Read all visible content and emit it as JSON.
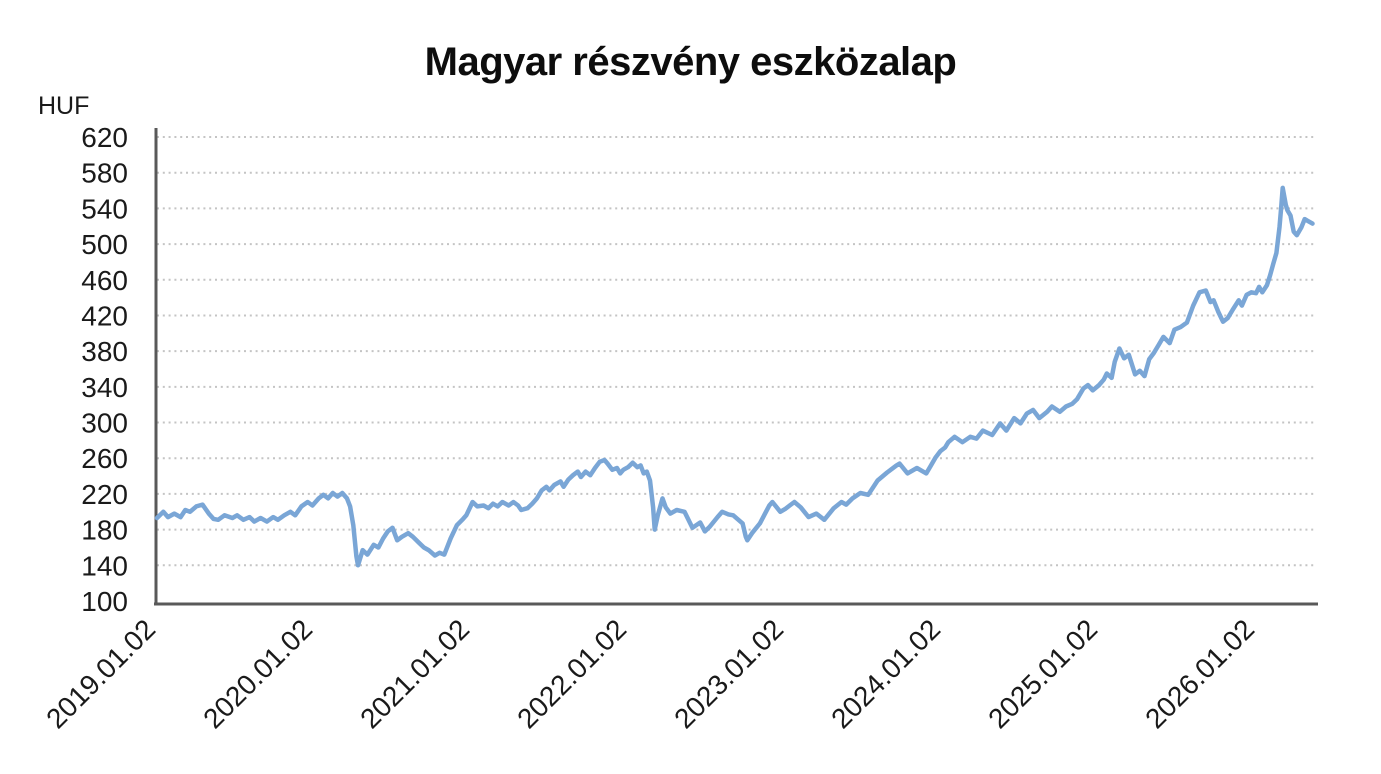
{
  "chart": {
    "title": "Magyar részvény eszközalap",
    "unit": "HUF"
  },
  "chart_data": {
    "type": "line",
    "title": "Magyar részvény eszközalap",
    "ylabel": "HUF",
    "xlabel": "",
    "ylim": [
      100,
      620
    ],
    "y_ticks": [
      620,
      580,
      540,
      500,
      460,
      420,
      380,
      340,
      300,
      260,
      220,
      180,
      140,
      100
    ],
    "x_tick_labels": [
      "2019.01.02",
      "2020.01.02",
      "2021.01.02",
      "2022.01.02",
      "2023.01.02",
      "2024.01.02",
      "2025.01.02",
      "2026.01.02"
    ],
    "grid": "horizontal-dotted",
    "legend": "none",
    "line_color": "#7AA6D6",
    "axis_color": "#595959",
    "grid_color": "#c4c4c4",
    "series": [
      {
        "name": "Magyar részvény eszközalap",
        "x_unit": "years after 2019.01.02",
        "points": [
          [
            0.0,
            193
          ],
          [
            0.04,
            200
          ],
          [
            0.07,
            194
          ],
          [
            0.11,
            198
          ],
          [
            0.15,
            194
          ],
          [
            0.18,
            202
          ],
          [
            0.21,
            200
          ],
          [
            0.25,
            206
          ],
          [
            0.29,
            208
          ],
          [
            0.33,
            198
          ],
          [
            0.36,
            192
          ],
          [
            0.39,
            191
          ],
          [
            0.43,
            196
          ],
          [
            0.48,
            193
          ],
          [
            0.51,
            196
          ],
          [
            0.55,
            191
          ],
          [
            0.59,
            194
          ],
          [
            0.62,
            189
          ],
          [
            0.66,
            193
          ],
          [
            0.7,
            189
          ],
          [
            0.74,
            194
          ],
          [
            0.77,
            191
          ],
          [
            0.81,
            196
          ],
          [
            0.85,
            200
          ],
          [
            0.88,
            196
          ],
          [
            0.92,
            206
          ],
          [
            0.96,
            211
          ],
          [
            0.99,
            207
          ],
          [
            1.03,
            215
          ],
          [
            1.06,
            219
          ],
          [
            1.09,
            215
          ],
          [
            1.12,
            221
          ],
          [
            1.15,
            217
          ],
          [
            1.18,
            221
          ],
          [
            1.21,
            215
          ],
          [
            1.23,
            206
          ],
          [
            1.25,
            185
          ],
          [
            1.26,
            168
          ],
          [
            1.27,
            150
          ],
          [
            1.28,
            140
          ],
          [
            1.31,
            157
          ],
          [
            1.34,
            152
          ],
          [
            1.38,
            163
          ],
          [
            1.41,
            160
          ],
          [
            1.44,
            170
          ],
          [
            1.47,
            178
          ],
          [
            1.5,
            182
          ],
          [
            1.53,
            168
          ],
          [
            1.56,
            172
          ],
          [
            1.6,
            176
          ],
          [
            1.63,
            172
          ],
          [
            1.67,
            165
          ],
          [
            1.7,
            160
          ],
          [
            1.73,
            157
          ],
          [
            1.77,
            151
          ],
          [
            1.8,
            154
          ],
          [
            1.83,
            152
          ],
          [
            1.87,
            170
          ],
          [
            1.91,
            185
          ],
          [
            1.95,
            192
          ],
          [
            1.97,
            196
          ],
          [
            2.01,
            211
          ],
          [
            2.04,
            206
          ],
          [
            2.08,
            207
          ],
          [
            2.11,
            204
          ],
          [
            2.14,
            209
          ],
          [
            2.17,
            206
          ],
          [
            2.2,
            211
          ],
          [
            2.24,
            207
          ],
          [
            2.27,
            211
          ],
          [
            2.3,
            207
          ],
          [
            2.32,
            202
          ],
          [
            2.36,
            204
          ],
          [
            2.39,
            209
          ],
          [
            2.42,
            215
          ],
          [
            2.45,
            224
          ],
          [
            2.48,
            228
          ],
          [
            2.5,
            224
          ],
          [
            2.53,
            230
          ],
          [
            2.57,
            234
          ],
          [
            2.59,
            228
          ],
          [
            2.62,
            236
          ],
          [
            2.65,
            241
          ],
          [
            2.68,
            245
          ],
          [
            2.7,
            239
          ],
          [
            2.73,
            245
          ],
          [
            2.76,
            241
          ],
          [
            2.79,
            249
          ],
          [
            2.82,
            256
          ],
          [
            2.85,
            258
          ],
          [
            2.87,
            254
          ],
          [
            2.9,
            247
          ],
          [
            2.93,
            249
          ],
          [
            2.95,
            243
          ],
          [
            2.97,
            247
          ],
          [
            3.0,
            250
          ],
          [
            3.03,
            255
          ],
          [
            3.06,
            250
          ],
          [
            3.08,
            252
          ],
          [
            3.1,
            243
          ],
          [
            3.12,
            245
          ],
          [
            3.14,
            235
          ],
          [
            3.16,
            205
          ],
          [
            3.17,
            180
          ],
          [
            3.19,
            196
          ],
          [
            3.22,
            215
          ],
          [
            3.24,
            205
          ],
          [
            3.27,
            198
          ],
          [
            3.31,
            202
          ],
          [
            3.36,
            200
          ],
          [
            3.41,
            182
          ],
          [
            3.46,
            188
          ],
          [
            3.49,
            178
          ],
          [
            3.52,
            183
          ],
          [
            3.57,
            194
          ],
          [
            3.6,
            200
          ],
          [
            3.64,
            197
          ],
          [
            3.67,
            196
          ],
          [
            3.73,
            187
          ],
          [
            3.75,
            172
          ],
          [
            3.76,
            168
          ],
          [
            3.79,
            176
          ],
          [
            3.84,
            187
          ],
          [
            3.9,
            207
          ],
          [
            3.92,
            211
          ],
          [
            3.97,
            200
          ],
          [
            4.0,
            203
          ],
          [
            4.03,
            207
          ],
          [
            4.06,
            211
          ],
          [
            4.1,
            205
          ],
          [
            4.15,
            194
          ],
          [
            4.2,
            198
          ],
          [
            4.25,
            191
          ],
          [
            4.31,
            204
          ],
          [
            4.36,
            211
          ],
          [
            4.39,
            208
          ],
          [
            4.43,
            215
          ],
          [
            4.48,
            221
          ],
          [
            4.53,
            219
          ],
          [
            4.59,
            235
          ],
          [
            4.65,
            244
          ],
          [
            4.71,
            252
          ],
          [
            4.73,
            254
          ],
          [
            4.78,
            243
          ],
          [
            4.84,
            249
          ],
          [
            4.9,
            243
          ],
          [
            4.93,
            252
          ],
          [
            4.96,
            261
          ],
          [
            4.99,
            268
          ],
          [
            5.02,
            272
          ],
          [
            5.04,
            278
          ],
          [
            5.08,
            284
          ],
          [
            5.13,
            278
          ],
          [
            5.18,
            284
          ],
          [
            5.22,
            282
          ],
          [
            5.26,
            291
          ],
          [
            5.32,
            286
          ],
          [
            5.37,
            299
          ],
          [
            5.41,
            291
          ],
          [
            5.46,
            305
          ],
          [
            5.5,
            299
          ],
          [
            5.54,
            310
          ],
          [
            5.58,
            314
          ],
          [
            5.62,
            305
          ],
          [
            5.67,
            312
          ],
          [
            5.7,
            318
          ],
          [
            5.75,
            312
          ],
          [
            5.79,
            318
          ],
          [
            5.83,
            321
          ],
          [
            5.86,
            326
          ],
          [
            5.9,
            338
          ],
          [
            5.93,
            342
          ],
          [
            5.96,
            336
          ],
          [
            6.0,
            342
          ],
          [
            6.03,
            348
          ],
          [
            6.05,
            355
          ],
          [
            6.08,
            350
          ],
          [
            6.1,
            368
          ],
          [
            6.13,
            383
          ],
          [
            6.16,
            372
          ],
          [
            6.19,
            376
          ],
          [
            6.23,
            354
          ],
          [
            6.26,
            358
          ],
          [
            6.29,
            352
          ],
          [
            6.32,
            371
          ],
          [
            6.35,
            378
          ],
          [
            6.38,
            387
          ],
          [
            6.41,
            396
          ],
          [
            6.45,
            389
          ],
          [
            6.48,
            404
          ],
          [
            6.52,
            407
          ],
          [
            6.56,
            412
          ],
          [
            6.6,
            431
          ],
          [
            6.64,
            446
          ],
          [
            6.68,
            448
          ],
          [
            6.71,
            435
          ],
          [
            6.73,
            437
          ],
          [
            6.76,
            424
          ],
          [
            6.79,
            413
          ],
          [
            6.82,
            417
          ],
          [
            6.85,
            426
          ],
          [
            6.89,
            437
          ],
          [
            6.91,
            431
          ],
          [
            6.94,
            443
          ],
          [
            6.97,
            446
          ],
          [
            7.0,
            445
          ],
          [
            7.02,
            452
          ],
          [
            7.04,
            446
          ],
          [
            7.07,
            454
          ],
          [
            7.09,
            465
          ],
          [
            7.11,
            478
          ],
          [
            7.13,
            490
          ],
          [
            7.15,
            519
          ],
          [
            7.16,
            540
          ],
          [
            7.17,
            563
          ],
          [
            7.19,
            544
          ],
          [
            7.2,
            538
          ],
          [
            7.22,
            532
          ],
          [
            7.24,
            514
          ],
          [
            7.26,
            510
          ],
          [
            7.29,
            519
          ],
          [
            7.31,
            528
          ],
          [
            7.33,
            526
          ],
          [
            7.36,
            523
          ]
        ]
      }
    ]
  }
}
